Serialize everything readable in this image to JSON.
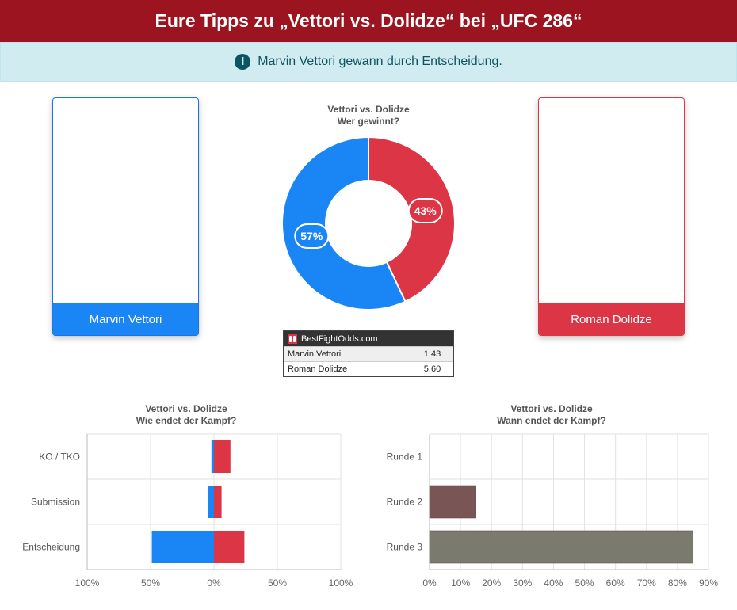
{
  "header": {
    "title": "Eure Tipps zu „Vettori vs. Dolidze“ bei „UFC 286“"
  },
  "alert": {
    "icon": "info-icon",
    "text": "Marvin Vettori gewann durch Entscheidung."
  },
  "fighters": {
    "left": {
      "name": "Marvin Vettori",
      "color": "#1a86f5"
    },
    "right": {
      "name": "Roman Dolidze",
      "color": "#dc3545"
    }
  },
  "odds": {
    "source": "BestFightOdds.com",
    "rows": [
      {
        "name": "Marvin Vettori",
        "value": "1.43"
      },
      {
        "name": "Roman Dolidze",
        "value": "5.60"
      }
    ]
  },
  "chart_data": [
    {
      "type": "pie",
      "title": "Vettori vs. Dolidze",
      "subtitle": "Wer gewinnt?",
      "slices": [
        {
          "label": "Marvin Vettori",
          "value": 57,
          "display": "57%",
          "color": "#1a86f5"
        },
        {
          "label": "Roman Dolidze",
          "value": 43,
          "display": "43%",
          "color": "#dc3545"
        }
      ]
    },
    {
      "type": "bar",
      "orientation": "horizontal-diverging",
      "title": "Vettori vs. Dolidze",
      "subtitle": "Wie endet der Kampf?",
      "categories": [
        "KO / TKO",
        "Submission",
        "Entscheidung"
      ],
      "series": [
        {
          "name": "Marvin Vettori",
          "values": [
            2,
            5,
            49
          ],
          "color": "#1a86f5"
        },
        {
          "name": "Roman Dolidze",
          "values": [
            13,
            6,
            24
          ],
          "color": "#dc3545"
        }
      ],
      "xlim": [
        -100,
        100
      ],
      "tick_labels": [
        "100%",
        "50%",
        "0%",
        "50%",
        "100%"
      ],
      "grid": true
    },
    {
      "type": "bar",
      "orientation": "horizontal",
      "title": "Vettori vs. Dolidze",
      "subtitle": "Wann endet der Kampf?",
      "categories": [
        "Runde 1",
        "Runde 2",
        "Runde 3"
      ],
      "values": [
        0,
        15,
        85
      ],
      "colors": [
        "#7a5555",
        "#7a5555",
        "#7a7a6e"
      ],
      "xlim": [
        0,
        90
      ],
      "tick_labels": [
        "0%",
        "10%",
        "20%",
        "30%",
        "40%",
        "50%",
        "60%",
        "70%",
        "80%",
        "90%"
      ],
      "grid": true
    }
  ]
}
